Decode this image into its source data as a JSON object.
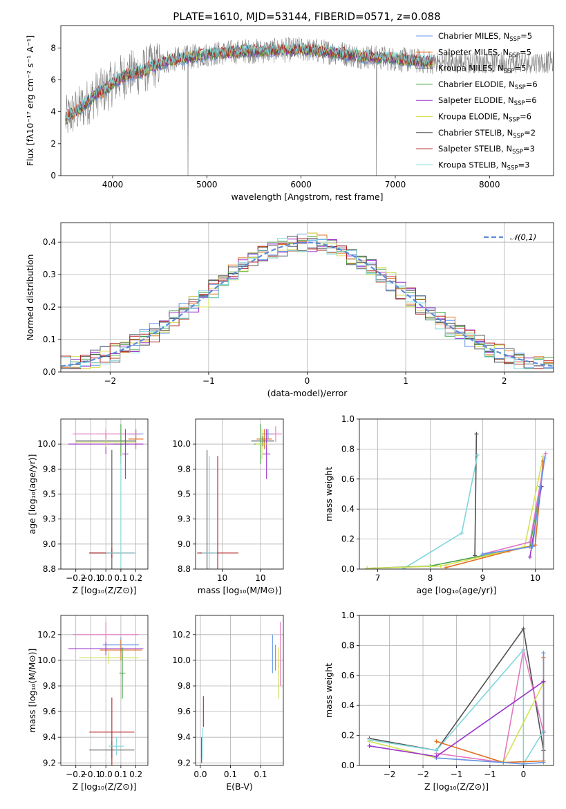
{
  "title": "PLATE=1610, MJD=53144, FIBERID=0571, z=0.088",
  "colors": {
    "chabrier_miles": "#6495ED",
    "salpeter_miles": "#E0701F",
    "kroupa_miles": "#55606a",
    "chabrier_elodie": "#48a048",
    "salpeter_elodie": "#9932CC",
    "kroupa_elodie": "#d4e157",
    "chabrier_stelib": "#505050",
    "salpeter_stelib": "#B22222",
    "kroupa_stelib": "#7ed6dc",
    "data": "#808080",
    "normal": "#5b8bd8",
    "mw_pink": "#e377c2"
  },
  "legend": [
    {
      "name": "Chabrier MILES",
      "nssp": "5",
      "color_key": "chabrier_miles"
    },
    {
      "name": "Salpeter MILES",
      "nssp": "5",
      "color_key": "salpeter_miles"
    },
    {
      "name": "Kroupa MILES",
      "nssp": "5",
      "color_key": "kroupa_miles"
    },
    {
      "name": "Chabrier ELODIE",
      "nssp": "6",
      "color_key": "chabrier_elodie"
    },
    {
      "name": "Salpeter ELODIE",
      "nssp": "6",
      "color_key": "salpeter_elodie"
    },
    {
      "name": "Kroupa ELODIE",
      "nssp": "6",
      "color_key": "kroupa_elodie"
    },
    {
      "name": "Chabrier STELIB",
      "nssp": "2",
      "color_key": "chabrier_stelib"
    },
    {
      "name": "Salpeter STELIB",
      "nssp": "3",
      "color_key": "salpeter_stelib"
    },
    {
      "name": "Kroupa STELIB",
      "nssp": "3",
      "color_key": "kroupa_stelib"
    }
  ],
  "chart_data": [
    {
      "id": "spectrum",
      "type": "line",
      "xlabel": "wavelength [Angstrom, rest frame]",
      "ylabel": "Flux [fλ10⁻¹⁷ erg cm⁻² s⁻¹ A⁻¹]",
      "xlim": [
        3450,
        8680
      ],
      "ylim": [
        0,
        9.4
      ],
      "xticks": [
        4000,
        5000,
        6000,
        7000,
        8000
      ],
      "yticks": [
        0,
        2,
        4,
        6,
        8
      ],
      "model_x": [
        3500,
        3550,
        3600,
        3650,
        3700,
        3750,
        3800,
        3850,
        3900,
        3950,
        4000,
        4100,
        4200,
        4300,
        4400,
        4500,
        4600,
        4700,
        4800,
        4900,
        5000,
        5200,
        5400,
        5600,
        5800,
        6000,
        6200,
        6400,
        6600,
        6800,
        7000,
        7200,
        7400
      ],
      "model_y": [
        3.5,
        3.8,
        4.0,
        4.2,
        4.4,
        4.7,
        5.0,
        5.2,
        5.3,
        5.5,
        5.8,
        6.2,
        6.4,
        6.5,
        6.8,
        7.0,
        7.2,
        7.3,
        7.4,
        7.5,
        7.6,
        7.7,
        7.8,
        7.8,
        7.85,
        7.9,
        7.8,
        7.7,
        7.5,
        7.4,
        7.3,
        7.2,
        7.1
      ]
    },
    {
      "id": "residuals",
      "type": "histogram",
      "xlabel": "(data-model)/error",
      "ylabel": "Normed distribution",
      "xlim": [
        -2.5,
        2.5
      ],
      "ylim": [
        0,
        0.46
      ],
      "xticks": [
        -2,
        -1,
        0,
        1,
        2
      ],
      "yticks": [
        0.0,
        0.1,
        0.2,
        0.3,
        0.4
      ],
      "legend_label": "𝒩(0,1)",
      "bin_width": 0.1
    },
    {
      "id": "age-vs-Z",
      "type": "errorbar",
      "xlabel": "Z [log₁₀(Z/Z⊙)]",
      "ylabel": "age  [log₁₀(age/yr)]",
      "xlim": [
        -0.3,
        0.28
      ],
      "ylim": [
        8.75,
        10.25
      ],
      "xticks": [
        -0.2,
        -0.1,
        0.0,
        0.1,
        0.2
      ],
      "yticks": [
        8.75,
        9.0,
        9.25,
        9.5,
        9.75,
        10.0
      ],
      "points": [
        {
          "c": "chabrier_miles",
          "x": 0.2,
          "xe": 0.05,
          "y": 10.1,
          "ye": 0.05
        },
        {
          "c": "salpeter_miles",
          "x": 0.2,
          "xe": 0.05,
          "y": 10.05,
          "ye": 0.1
        },
        {
          "c": "kroupa_miles",
          "x": 0.0,
          "xe": 0.2,
          "y": 10.03,
          "ye": 0.05
        },
        {
          "c": "chabrier_elodie",
          "x": 0.1,
          "xe": 0.05,
          "y": 10.0,
          "ye": 0.2
        },
        {
          "c": "salpeter_elodie",
          "x": 0.0,
          "xe": 0.25,
          "y": 10.0,
          "ye": 0.1
        },
        {
          "c": "kroupa_elodie",
          "x": 0.0,
          "xe": 0.2,
          "y": 10.02,
          "ye": 0.05
        },
        {
          "c": "chabrier_stelib",
          "x": 0.04,
          "xe": 0.15,
          "y": 8.91,
          "ye": 1.03
        },
        {
          "c": "salpeter_stelib",
          "x": 0.04,
          "xe": 0.15,
          "y": 8.91,
          "ye": 0.05
        },
        {
          "c": "kroupa_stelib",
          "x": 0.1,
          "xe": 0.1,
          "y": 8.91,
          "ye": 0.97
        },
        {
          "c": "mw_pink",
          "x": 0.0,
          "xe": 0.22,
          "y": 10.1,
          "ye": 0.05
        },
        {
          "c": "salpeter_elodie",
          "x": 0.13,
          "xe": 0.02,
          "y": 9.9,
          "ye": 0.25
        }
      ]
    },
    {
      "id": "age-vs-mass",
      "type": "errorbar",
      "xlabel": "mass [log₁₀(M/M⊙)]",
      "ylabel": "",
      "xlim": [
        9.15,
        10.3
      ],
      "ylim": [
        8.75,
        10.25
      ],
      "xticks": [
        9.5,
        10.0
      ],
      "yticks": [
        8.75,
        9.0,
        9.25,
        9.5,
        9.75,
        10.0
      ],
      "points": [
        {
          "c": "chabrier_miles",
          "x": 10.1,
          "xe": 0.08,
          "y": 10.1,
          "ye": 0.05
        },
        {
          "c": "salpeter_miles",
          "x": 10.05,
          "xe": 0.1,
          "y": 10.05,
          "ye": 0.1
        },
        {
          "c": "kroupa_miles",
          "x": 10.03,
          "xe": 0.15,
          "y": 10.03,
          "ye": 0.05
        },
        {
          "c": "chabrier_elodie",
          "x": 10.0,
          "xe": 0.08,
          "y": 10.0,
          "ye": 0.2
        },
        {
          "c": "salpeter_elodie",
          "x": 10.08,
          "xe": 0.05,
          "y": 9.9,
          "ye": 0.25
        },
        {
          "c": "kroupa_elodie",
          "x": 10.02,
          "xe": 0.08,
          "y": 10.0,
          "ye": 0.15
        },
        {
          "c": "chabrier_stelib",
          "x": 9.3,
          "xe": 0.1,
          "y": 8.91,
          "ye": 1.03
        },
        {
          "c": "salpeter_stelib",
          "x": 9.44,
          "xe": 0.27,
          "y": 8.91,
          "ye": 0.97
        },
        {
          "c": "kroupa_stelib",
          "x": 9.33,
          "xe": 0.1,
          "y": 8.91,
          "ye": 0.97
        },
        {
          "c": "mw_pink",
          "x": 10.2,
          "xe": 0.08,
          "y": 10.1,
          "ye": 0.08
        }
      ]
    },
    {
      "id": "weight-vs-age",
      "type": "line",
      "xlabel": "age  [log₁₀(age/yr)]",
      "ylabel": "mass weight",
      "xlim": [
        6.65,
        10.35
      ],
      "ylim": [
        0,
        1.0
      ],
      "xticks": [
        7,
        8,
        9,
        10
      ],
      "yticks": [
        0.0,
        0.2,
        0.4,
        0.6,
        0.8,
        1.0
      ],
      "series": [
        {
          "c": "chabrier_stelib",
          "x": [
            8.85,
            8.88
          ],
          "y": [
            0.09,
            0.9
          ]
        },
        {
          "c": "kroupa_stelib",
          "x": [
            7.5,
            8.6,
            8.9
          ],
          "y": [
            0.005,
            0.24,
            0.76
          ]
        },
        {
          "c": "chabrier_elodie",
          "x": [
            6.8,
            8.0,
            9.0,
            9.9,
            10.1
          ],
          "y": [
            0.005,
            0.02,
            0.09,
            0.15,
            0.55
          ]
        },
        {
          "c": "kroupa_elodie",
          "x": [
            6.8,
            8.2,
            9.2,
            9.8,
            10.15
          ],
          "y": [
            0.005,
            0.02,
            0.1,
            0.15,
            0.75
          ]
        },
        {
          "c": "salpeter_miles",
          "x": [
            8.3,
            9.5,
            10.0,
            10.15
          ],
          "y": [
            0.01,
            0.12,
            0.16,
            0.72
          ]
        },
        {
          "c": "salpeter_elodie",
          "x": [
            9.9,
            10.12
          ],
          "y": [
            0.08,
            0.55
          ]
        },
        {
          "c": "mw_pink",
          "x": [
            9.0,
            9.9,
            10.2
          ],
          "y": [
            0.1,
            0.18,
            0.77
          ]
        },
        {
          "c": "chabrier_miles",
          "x": [
            9.0,
            9.95,
            10.18
          ],
          "y": [
            0.1,
            0.15,
            0.74
          ]
        }
      ]
    },
    {
      "id": "mass-vs-Z",
      "type": "errorbar",
      "xlabel": "Z [log₁₀(Z/Z⊙)]",
      "ylabel": "mass [log₁₀(M/M⊙)]",
      "xlim": [
        -0.3,
        0.28
      ],
      "ylim": [
        9.18,
        10.35
      ],
      "xticks": [
        -0.2,
        -0.1,
        0.0,
        0.1,
        0.2
      ],
      "yticks": [
        9.2,
        9.4,
        9.6,
        9.8,
        10.0,
        10.2
      ],
      "points": [
        {
          "c": "chabrier_miles",
          "x": 0.1,
          "xe": 0.12,
          "y": 10.12,
          "ye": 0.06
        },
        {
          "c": "salpeter_miles",
          "x": 0.1,
          "xe": 0.14,
          "y": 10.08,
          "ye": 0.08
        },
        {
          "c": "mw_pink",
          "x": 0.0,
          "xe": 0.22,
          "y": 10.2,
          "ye": 0.1
        },
        {
          "c": "salpeter_elodie",
          "x": 0.0,
          "xe": 0.25,
          "y": 10.09,
          "ye": 0.05
        },
        {
          "c": "kroupa_elodie",
          "x": 0.02,
          "xe": 0.2,
          "y": 10.02,
          "ye": 0.05
        },
        {
          "c": "chabrier_elodie",
          "x": 0.11,
          "xe": 0.02,
          "y": 9.9,
          "ye": 0.2
        },
        {
          "c": "chabrier_stelib",
          "x": 0.04,
          "xe": 0.15,
          "y": 9.3,
          "ye": 0.07
        },
        {
          "c": "salpeter_stelib",
          "x": 0.04,
          "xe": 0.15,
          "y": 9.44,
          "ye": 0.27
        },
        {
          "c": "kroupa_stelib",
          "x": 0.07,
          "xe": 0.05,
          "y": 9.33,
          "ye": 0.07
        }
      ]
    },
    {
      "id": "mass-vs-ebv",
      "type": "errorbar",
      "xlabel": "E(B-V)",
      "ylabel": "",
      "xlim": [
        -0.008,
        0.138
      ],
      "ylim": [
        9.18,
        10.35
      ],
      "xticks": [
        0.0,
        0.05,
        0.1
      ],
      "yticks": [
        9.2,
        9.4,
        9.6,
        9.8,
        10.0,
        10.2
      ],
      "points": [
        {
          "c": "chabrier_miles",
          "x": 0.12,
          "y": 10.05,
          "ye": 0.15
        },
        {
          "c": "salpeter_miles",
          "x": 0.125,
          "y": 10.02,
          "ye": 0.1
        },
        {
          "c": "chabrier_elodie",
          "x": 0.13,
          "y": 9.9,
          "ye": 0.2
        },
        {
          "c": "kroupa_elodie",
          "x": 0.13,
          "y": 9.9,
          "ye": 0.2
        },
        {
          "c": "mw_pink",
          "x": 0.133,
          "y": 10.05,
          "ye": 0.25
        },
        {
          "c": "chabrier_stelib",
          "x": 0.002,
          "y": 9.3,
          "ye": 0.1
        },
        {
          "c": "salpeter_stelib",
          "x": 0.005,
          "y": 9.6,
          "ye": 0.12
        },
        {
          "c": "kroupa_stelib",
          "x": 0.003,
          "y": 9.35,
          "ye": 0.12
        }
      ]
    },
    {
      "id": "weight-vs-Z",
      "type": "line",
      "xlabel": "Z [log₁₀(Z/Z⊙)]",
      "ylabel": "mass weight",
      "xlim": [
        -2.45,
        0.45
      ],
      "ylim": [
        0,
        1.0
      ],
      "xticks": [
        -2.0,
        -1.5,
        -1.0,
        -0.5,
        0.0
      ],
      "yticks": [
        0.0,
        0.2,
        0.4,
        0.6,
        0.8,
        1.0
      ],
      "series": [
        {
          "c": "chabrier_stelib",
          "x": [
            -2.3,
            -1.3,
            0.0,
            0.3
          ],
          "y": [
            0.18,
            0.1,
            0.91,
            0.1
          ]
        },
        {
          "c": "mw_pink",
          "x": [
            -1.3,
            -0.3,
            0.0,
            0.3
          ],
          "y": [
            0.08,
            0.02,
            0.77,
            0.22
          ]
        },
        {
          "c": "kroupa_stelib",
          "x": [
            -2.3,
            -1.3,
            0.0,
            0.0,
            0.3
          ],
          "y": [
            0.17,
            0.1,
            0.77,
            0.01,
            0.23
          ]
        },
        {
          "c": "kroupa_elodie",
          "x": [
            -2.3,
            -1.3,
            -0.3,
            0.3
          ],
          "y": [
            0.16,
            0.05,
            0.02,
            0.55
          ]
        },
        {
          "c": "salpeter_miles",
          "x": [
            -1.3,
            -0.3,
            0.3,
            0.3
          ],
          "y": [
            0.16,
            0.02,
            0.03,
            0.72
          ]
        },
        {
          "c": "chabrier_miles",
          "x": [
            -1.3,
            0.0,
            0.3,
            0.3
          ],
          "y": [
            0.05,
            0.01,
            0.02,
            0.75
          ]
        },
        {
          "c": "salpeter_elodie",
          "x": [
            -2.3,
            -1.3,
            0.3
          ],
          "y": [
            0.13,
            0.06,
            0.56
          ]
        }
      ]
    }
  ]
}
